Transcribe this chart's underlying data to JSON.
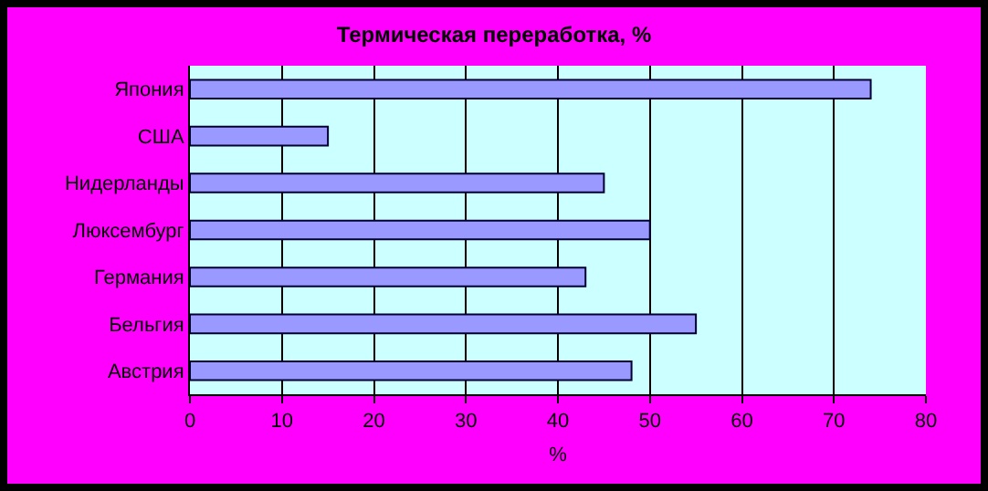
{
  "chart_data": {
    "type": "bar",
    "orientation": "horizontal",
    "title": "Термическая переработка, %",
    "xlabel": "%",
    "categories": [
      "Япония",
      "США",
      "Нидерланды",
      "Люксембург",
      "Германия",
      "Бельгия",
      "Австрия"
    ],
    "values": [
      74,
      15,
      45,
      50,
      43,
      55,
      48
    ],
    "color": "#9999ff",
    "xlim": [
      0,
      80
    ],
    "xticks": [
      0,
      10,
      20,
      30,
      40,
      50,
      60,
      70,
      80
    ],
    "grid": "x",
    "legend": false
  }
}
